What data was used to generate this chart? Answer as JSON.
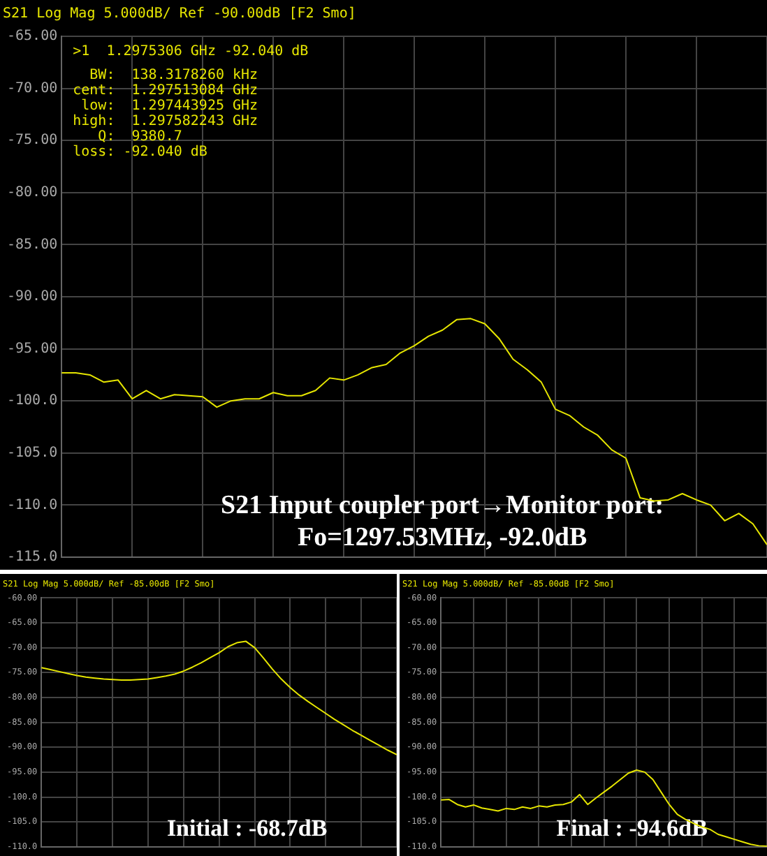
{
  "chart_data": [
    {
      "type": "line",
      "title": "S21 Log Mag 5.000dB/ Ref -90.00dB [F2 Smo]",
      "subtitle": "S21 Input coupler port→Monitor port:\nFo=1297.53MHz, -92.0dB",
      "annotations": [
        ">1  1.2975306 GHz -92.040 dB",
        "  BW:  138.3178260 kHz",
        "cent:  1.297513084 GHz",
        " low:  1.297443925 GHz",
        "high:  1.297582243 GHz",
        "   Q:  9380.7",
        "loss: -92.040 dB"
      ],
      "categories": [
        null,
        null,
        null,
        null,
        null,
        null,
        null,
        null,
        null,
        null,
        null,
        null,
        null,
        null,
        null,
        null,
        null,
        null,
        null,
        null,
        null,
        null,
        null,
        null,
        null,
        null,
        null,
        null,
        null,
        null,
        null,
        null,
        null,
        null,
        null,
        null,
        null,
        null,
        null,
        null,
        null,
        null,
        null,
        null,
        null,
        null,
        null,
        null,
        null,
        null,
        null
      ],
      "series": [
        {
          "color": "#e6e600",
          "values": [
            -97.3,
            -97.3,
            -97.5,
            -98.2,
            -98.0,
            -99.8,
            -99.0,
            -99.8,
            -99.4,
            -99.5,
            -99.6,
            -100.6,
            -100.0,
            -99.8,
            -99.8,
            -99.2,
            -99.5,
            -99.5,
            -99.0,
            -97.8,
            -98.0,
            -97.5,
            -96.8,
            -96.5,
            -95.4,
            -94.7,
            -93.8,
            -93.2,
            -92.2,
            -92.1,
            -92.6,
            -94.0,
            -96.0,
            -97.0,
            -98.2,
            -100.8,
            -101.4,
            -102.5,
            -103.3,
            -104.7,
            -105.5,
            -109.3,
            -109.6,
            -109.5,
            -108.9,
            -109.5,
            -110.0,
            -111.5,
            -110.8,
            -111.8,
            -113.8
          ]
        }
      ],
      "ylim": [
        -115,
        -65
      ],
      "yticks": [
        {
          "value": -115,
          "label": "-115.0"
        },
        {
          "value": -110,
          "label": "-110.0"
        },
        {
          "value": -105,
          "label": "-105.0"
        },
        {
          "value": -100,
          "label": "-100.0"
        },
        {
          "value": -95,
          "label": "-95.00"
        },
        {
          "value": -90,
          "label": "-90.00"
        },
        {
          "value": -85,
          "label": "-85.00"
        },
        {
          "value": -80,
          "label": "-80.00"
        },
        {
          "value": -75,
          "label": "-75.00"
        },
        {
          "value": -70,
          "label": "-70.00"
        },
        {
          "value": -65,
          "label": "-65.00"
        }
      ],
      "grid": true,
      "legend": false,
      "tick_labels": "y",
      "marker": "none",
      "line_style": "solid"
    },
    {
      "type": "line",
      "title": "S21 Log Mag 5.000dB/ Ref -85.00dB [F2 Smo]",
      "subtitle": "Initial : -68.7dB",
      "categories": [
        null,
        null,
        null,
        null,
        null,
        null,
        null,
        null,
        null,
        null,
        null,
        null,
        null,
        null,
        null,
        null,
        null,
        null,
        null,
        null,
        null,
        null,
        null,
        null,
        null,
        null,
        null,
        null,
        null,
        null,
        null,
        null,
        null,
        null,
        null,
        null,
        null,
        null,
        null,
        null,
        null
      ],
      "series": [
        {
          "color": "#e6e600",
          "values": [
            -74.0,
            -74.4,
            -74.8,
            -75.2,
            -75.6,
            -75.9,
            -76.1,
            -76.3,
            -76.4,
            -76.5,
            -76.5,
            -76.4,
            -76.3,
            -76.0,
            -75.7,
            -75.3,
            -74.7,
            -73.9,
            -73.0,
            -72.0,
            -71.0,
            -69.8,
            -69.0,
            -68.7,
            -70.0,
            -72.1,
            -74.3,
            -76.3,
            -78.0,
            -79.5,
            -80.8,
            -82.0,
            -83.2,
            -84.4,
            -85.5,
            -86.6,
            -87.6,
            -88.6,
            -89.6,
            -90.6,
            -91.5
          ]
        }
      ],
      "ylim": [
        -110,
        -60
      ],
      "yticks": [
        {
          "value": -110,
          "label": "-110.0"
        },
        {
          "value": -105,
          "label": "-105.0"
        },
        {
          "value": -100,
          "label": "-100.0"
        },
        {
          "value": -95,
          "label": "-95.00"
        },
        {
          "value": -90,
          "label": "-90.00"
        },
        {
          "value": -85,
          "label": "-85.00"
        },
        {
          "value": -80,
          "label": "-80.00"
        },
        {
          "value": -75,
          "label": "-75.00"
        },
        {
          "value": -70,
          "label": "-70.00"
        },
        {
          "value": -65,
          "label": "-65.00"
        },
        {
          "value": -60,
          "label": "-60.00"
        }
      ],
      "grid": true,
      "legend": false,
      "tick_labels": "y",
      "marker": "none",
      "line_style": "solid"
    },
    {
      "type": "line",
      "title": "S21 Log Mag 5.000dB/ Ref -85.00dB [F2 Smo]",
      "subtitle": "Final : -94.6dB",
      "categories": [
        null,
        null,
        null,
        null,
        null,
        null,
        null,
        null,
        null,
        null,
        null,
        null,
        null,
        null,
        null,
        null,
        null,
        null,
        null,
        null,
        null,
        null,
        null,
        null,
        null,
        null,
        null,
        null,
        null,
        null,
        null,
        null,
        null,
        null,
        null,
        null,
        null,
        null,
        null,
        null,
        null
      ],
      "series": [
        {
          "color": "#e6e600",
          "values": [
            -100.6,
            -100.5,
            -101.5,
            -102.0,
            -101.6,
            -102.2,
            -102.5,
            -102.8,
            -102.3,
            -102.5,
            -102.0,
            -102.3,
            -101.8,
            -102.0,
            -101.6,
            -101.5,
            -101.0,
            -99.5,
            -101.5,
            -100.2,
            -99.0,
            -97.8,
            -96.5,
            -95.2,
            -94.6,
            -95.0,
            -96.5,
            -99.0,
            -101.5,
            -103.5,
            -104.5,
            -105.3,
            -106.0,
            -106.5,
            -107.5,
            -108.0,
            -108.5,
            -109.0,
            -109.5,
            -109.8,
            -109.9
          ]
        }
      ],
      "ylim": [
        -110,
        -60
      ],
      "yticks": [
        {
          "value": -110,
          "label": "-110.0"
        },
        {
          "value": -105,
          "label": "-105.0"
        },
        {
          "value": -100,
          "label": "-100.0"
        },
        {
          "value": -95,
          "label": "-95.00"
        },
        {
          "value": -90,
          "label": "-90.00"
        },
        {
          "value": -85,
          "label": "-85.00"
        },
        {
          "value": -80,
          "label": "-80.00"
        },
        {
          "value": -75,
          "label": "-75.00"
        },
        {
          "value": -70,
          "label": "-70.00"
        },
        {
          "value": -65,
          "label": "-65.00"
        },
        {
          "value": -60,
          "label": "-60.00"
        }
      ],
      "grid": true,
      "legend": false,
      "tick_labels": "y",
      "marker": "none",
      "line_style": "solid"
    }
  ]
}
